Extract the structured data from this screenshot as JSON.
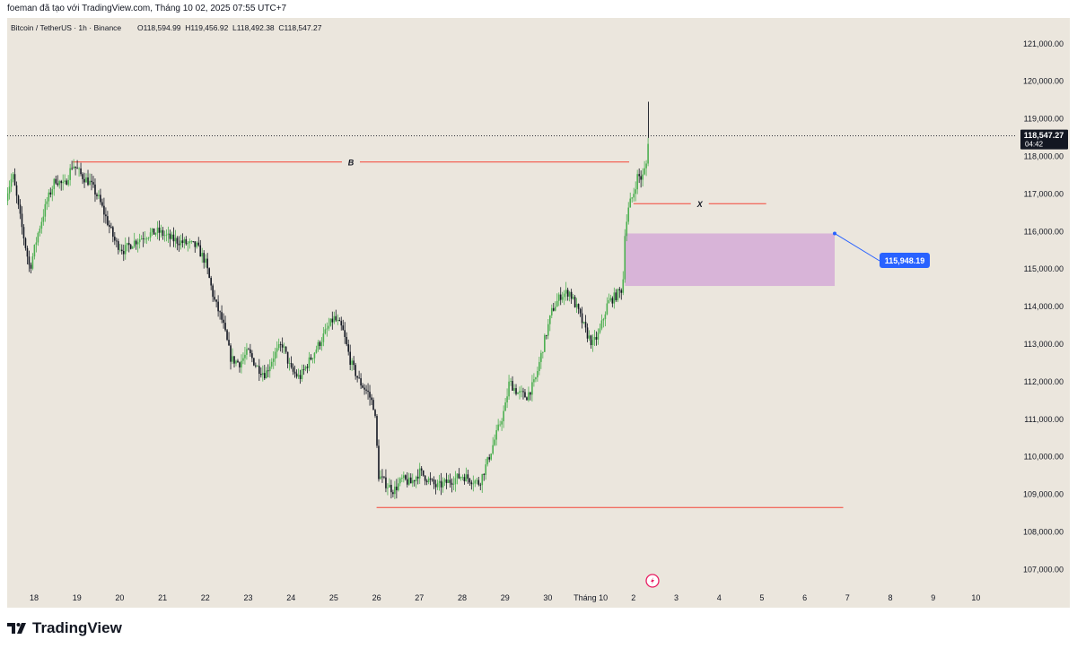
{
  "header": {
    "caption": "foeman đã tạo với TradingView.com, Tháng 10 02, 2025 07:55 UTC+7"
  },
  "symbol_bar": {
    "pair": "Bitcoin / TetherUS · 1h · Binance",
    "ohlc": "O118,594.99  H119,456.92  L118,492.38  C118,547.27"
  },
  "price_marker": {
    "price": "118,547.27",
    "countdown": "04:42"
  },
  "callout": {
    "label": "115,948.19",
    "color": "#2962ff"
  },
  "footer": {
    "brand": "TradingView"
  },
  "colors": {
    "background": "#ebe6dd",
    "up_candle": "#4caf50",
    "down_candle": "#131722",
    "level_line": "#f44336",
    "zone": "#d8b4d8"
  },
  "chart_data": {
    "type": "candlestick",
    "ylim": [
      106500,
      121500
    ],
    "y_ticks": [
      "107,000.00",
      "108,000.00",
      "109,000.00",
      "110,000.00",
      "111,000.00",
      "112,000.00",
      "113,000.00",
      "114,000.00",
      "115,000.00",
      "116,000.00",
      "117,000.00",
      "118,000.00",
      "119,000.00",
      "120,000.00",
      "121,000.00"
    ],
    "x_ticks": [
      {
        "label": "18",
        "day": 18
      },
      {
        "label": "19",
        "day": 19
      },
      {
        "label": "20",
        "day": 20
      },
      {
        "label": "21",
        "day": 21
      },
      {
        "label": "22",
        "day": 22
      },
      {
        "label": "23",
        "day": 23
      },
      {
        "label": "24",
        "day": 24
      },
      {
        "label": "25",
        "day": 25
      },
      {
        "label": "26",
        "day": 26
      },
      {
        "label": "27",
        "day": 27
      },
      {
        "label": "28",
        "day": 28
      },
      {
        "label": "29",
        "day": 29
      },
      {
        "label": "30",
        "day": 30
      },
      {
        "label": "Tháng 10",
        "day": 31
      },
      {
        "label": "2",
        "day": 32
      },
      {
        "label": "3",
        "day": 33
      },
      {
        "label": "4",
        "day": 34
      },
      {
        "label": "5",
        "day": 35
      },
      {
        "label": "6",
        "day": 36
      },
      {
        "label": "7",
        "day": 37
      },
      {
        "label": "8",
        "day": 38
      },
      {
        "label": "9",
        "day": 39
      },
      {
        "label": "10",
        "day": 40
      }
    ],
    "price_path": [
      [
        17.3,
        116800
      ],
      [
        17.5,
        117500
      ],
      [
        17.7,
        116200
      ],
      [
        17.9,
        115000
      ],
      [
        18.1,
        116000
      ],
      [
        18.3,
        116800
      ],
      [
        18.5,
        117400
      ],
      [
        18.7,
        117200
      ],
      [
        18.9,
        117800
      ],
      [
        19.1,
        117500
      ],
      [
        19.3,
        117300
      ],
      [
        19.5,
        116900
      ],
      [
        19.7,
        116300
      ],
      [
        19.9,
        115700
      ],
      [
        20.1,
        115500
      ],
      [
        20.3,
        115700
      ],
      [
        20.6,
        115900
      ],
      [
        20.9,
        116000
      ],
      [
        21.2,
        115800
      ],
      [
        21.5,
        115700
      ],
      [
        21.8,
        115600
      ],
      [
        22.0,
        115200
      ],
      [
        22.2,
        114200
      ],
      [
        22.4,
        113600
      ],
      [
        22.6,
        112600
      ],
      [
        22.8,
        112500
      ],
      [
        23.0,
        112800
      ],
      [
        23.2,
        112400
      ],
      [
        23.4,
        112200
      ],
      [
        23.6,
        112700
      ],
      [
        23.8,
        113000
      ],
      [
        24.0,
        112300
      ],
      [
        24.2,
        112100
      ],
      [
        24.4,
        112500
      ],
      [
        24.6,
        112900
      ],
      [
        24.8,
        113300
      ],
      [
        25.0,
        113700
      ],
      [
        25.2,
        113400
      ],
      [
        25.4,
        112500
      ],
      [
        25.6,
        112000
      ],
      [
        25.8,
        111700
      ],
      [
        25.95,
        111300
      ],
      [
        26.05,
        109500
      ],
      [
        26.2,
        109300
      ],
      [
        26.4,
        109100
      ],
      [
        26.6,
        109400
      ],
      [
        26.8,
        109300
      ],
      [
        27.0,
        109600
      ],
      [
        27.2,
        109400
      ],
      [
        27.4,
        109200
      ],
      [
        27.6,
        109300
      ],
      [
        27.8,
        109400
      ],
      [
        28.0,
        109500
      ],
      [
        28.2,
        109400
      ],
      [
        28.4,
        109300
      ],
      [
        28.6,
        109900
      ],
      [
        28.8,
        110600
      ],
      [
        29.0,
        111300
      ],
      [
        29.1,
        112000
      ],
      [
        29.3,
        111700
      ],
      [
        29.5,
        111600
      ],
      [
        29.7,
        112000
      ],
      [
        29.9,
        113000
      ],
      [
        30.1,
        113900
      ],
      [
        30.3,
        114300
      ],
      [
        30.5,
        114400
      ],
      [
        30.7,
        113900
      ],
      [
        30.9,
        113300
      ],
      [
        31.05,
        113000
      ],
      [
        31.2,
        113300
      ],
      [
        31.4,
        114100
      ],
      [
        31.6,
        114300
      ],
      [
        31.75,
        114500
      ],
      [
        31.8,
        116000
      ],
      [
        31.9,
        116700
      ],
      [
        32.0,
        117000
      ],
      [
        32.1,
        117500
      ],
      [
        32.2,
        117400
      ],
      [
        32.3,
        117800
      ],
      [
        32.35,
        118547.27
      ]
    ],
    "lines": [
      {
        "label": "B",
        "y": 117850,
        "x_from": 18.9,
        "x_to": 31.9
      },
      {
        "label": "X",
        "y": 116740,
        "x_from": 32.0,
        "x_to": 35.1
      },
      {
        "label": "",
        "y": 108650,
        "x_from": 26.0,
        "x_to": 36.9
      }
    ],
    "zone": {
      "y_top": 115948.19,
      "y_bottom": 114550,
      "x_from": 31.8,
      "x_to": 36.7
    },
    "current_price": 118547.27
  }
}
